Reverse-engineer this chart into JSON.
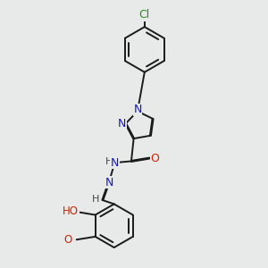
{
  "background_color": "#e8eaea",
  "line_color": "#1a1a1a",
  "bond_width": 1.4,
  "atom_colors": {
    "N": "#1414cc",
    "O": "#cc2200",
    "Cl": "#228B22",
    "H": "#444444",
    "C": "#1a1a1a"
  },
  "font_size": 8.5
}
